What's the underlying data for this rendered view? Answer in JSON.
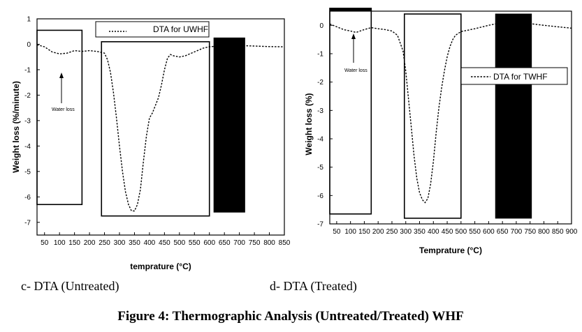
{
  "figure_caption": "Figure 4: Thermographic Analysis (Untreated/Treated) WHF",
  "chart_data": [
    {
      "type": "line",
      "caption": "c- DTA (Untreated)",
      "xlabel": "temprature (",
      "xlabel_unit": "°C)",
      "ylabel": "Weight loss (%/minute)",
      "xlim": [
        25,
        850
      ],
      "ylim": [
        -7.5,
        1
      ],
      "xticks": [
        50,
        100,
        150,
        200,
        250,
        300,
        350,
        400,
        450,
        500,
        550,
        600,
        650,
        700,
        750,
        800,
        850
      ],
      "yticks": [
        1,
        0,
        -1,
        -2,
        -3,
        -4,
        -5,
        -6,
        -7
      ],
      "legend": "DTA for UWHF",
      "annotation": "Water loss",
      "series": [
        {
          "name": "DTA for UWHF",
          "x": [
            25,
            50,
            75,
            100,
            125,
            150,
            175,
            200,
            225,
            250,
            260,
            270,
            280,
            290,
            300,
            310,
            320,
            330,
            340,
            350,
            360,
            370,
            380,
            390,
            400,
            410,
            420,
            430,
            440,
            450,
            460,
            470,
            480,
            500,
            520,
            550,
            580,
            600,
            650,
            700,
            750,
            800,
            850
          ],
          "y": [
            -0.02,
            -0.1,
            -0.3,
            -0.38,
            -0.35,
            -0.25,
            -0.28,
            -0.25,
            -0.28,
            -0.35,
            -0.6,
            -1.1,
            -1.9,
            -2.9,
            -4.0,
            -5.0,
            -5.8,
            -6.3,
            -6.55,
            -6.55,
            -6.3,
            -5.7,
            -4.6,
            -3.6,
            -2.9,
            -2.7,
            -2.4,
            -2.1,
            -1.6,
            -1.0,
            -0.55,
            -0.4,
            -0.45,
            -0.5,
            -0.45,
            -0.3,
            -0.15,
            -0.1,
            -0.05,
            -0.05,
            -0.07,
            -0.09,
            -0.1
          ]
        }
      ],
      "boxes": [
        {
          "kind": "outline",
          "x": [
            25,
            175
          ],
          "y": [
            -6.3,
            0.55
          ]
        },
        {
          "kind": "outline",
          "x": [
            240,
            600
          ],
          "y": [
            -6.75,
            0.1
          ]
        },
        {
          "kind": "filled",
          "x": [
            615,
            718
          ],
          "y": [
            -6.6,
            0.25
          ]
        }
      ]
    },
    {
      "type": "line",
      "caption": "d- DTA (Treated)",
      "xlabel": "Temprature (",
      "xlabel_unit": "°C)",
      "ylabel": "Weight loss (%)",
      "xlim": [
        25,
        900
      ],
      "ylim": [
        -7,
        0.5
      ],
      "xticks": [
        50,
        100,
        150,
        200,
        250,
        300,
        350,
        400,
        450,
        500,
        550,
        600,
        650,
        700,
        750,
        800,
        850,
        900
      ],
      "yticks": [
        0,
        -1,
        -2,
        -3,
        -4,
        -5,
        -6,
        -7
      ],
      "legend": "DTA for TWHF",
      "annotation": "Water loss",
      "series": [
        {
          "name": "DTA for TWHF",
          "x": [
            25,
            50,
            75,
            100,
            120,
            150,
            175,
            200,
            225,
            250,
            270,
            290,
            300,
            310,
            320,
            330,
            340,
            350,
            360,
            370,
            380,
            390,
            400,
            410,
            420,
            430,
            440,
            450,
            460,
            470,
            480,
            500,
            550,
            600,
            650,
            700,
            750,
            800,
            850,
            900
          ],
          "y": [
            0.05,
            -0.05,
            -0.15,
            -0.2,
            -0.25,
            -0.15,
            -0.08,
            -0.12,
            -0.15,
            -0.2,
            -0.35,
            -0.9,
            -1.6,
            -2.6,
            -3.6,
            -4.6,
            -5.4,
            -5.9,
            -6.15,
            -6.25,
            -6.1,
            -5.6,
            -4.8,
            -3.8,
            -2.9,
            -2.2,
            -1.6,
            -1.1,
            -0.75,
            -0.5,
            -0.35,
            -0.22,
            -0.12,
            0.0,
            0.1,
            0.1,
            0.06,
            0.0,
            -0.05,
            -0.1
          ]
        }
      ],
      "boxes": [
        {
          "kind": "filled",
          "x": [
            25,
            175
          ],
          "y": [
            0.5,
            0.6
          ]
        },
        {
          "kind": "outline",
          "x": [
            25,
            175
          ],
          "y": [
            -6.65,
            0.6
          ]
        },
        {
          "kind": "outline",
          "x": [
            295,
            500
          ],
          "y": [
            -6.8,
            0.4
          ]
        },
        {
          "kind": "filled",
          "x": [
            625,
            755
          ],
          "y": [
            -6.8,
            0.4
          ]
        }
      ]
    }
  ]
}
